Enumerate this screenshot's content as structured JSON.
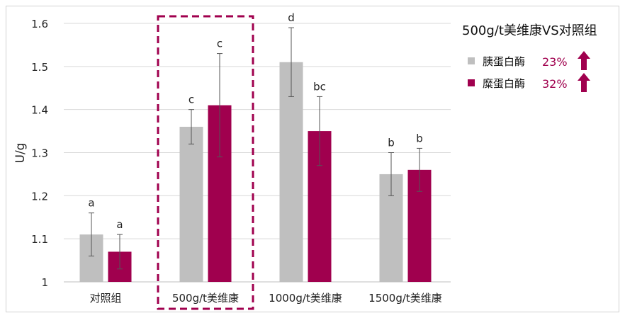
{
  "chart_data": {
    "type": "bar",
    "title": "500g/t美维康VS对照组",
    "ylabel": "U/g",
    "xlabel": "",
    "ylim": [
      1.0,
      1.6
    ],
    "yticks": [
      "1",
      "1.1",
      "1.2",
      "1.3",
      "1.4",
      "1.5",
      "1.6"
    ],
    "ytick_values": [
      1.0,
      1.1,
      1.2,
      1.3,
      1.4,
      1.5,
      1.6
    ],
    "grid": true,
    "legend_position": "right",
    "categories": [
      "对照组",
      "500g/t美维康",
      "1000g/t美维康",
      "1500g/t美维康"
    ],
    "highlighted_category": "500g/t美维康",
    "series": [
      {
        "name": "胰蛋白酶",
        "color": "#bfbfbf",
        "values": [
          1.11,
          1.36,
          1.51,
          1.25
        ],
        "error_low": [
          1.06,
          1.32,
          1.43,
          1.2
        ],
        "error_high": [
          1.16,
          1.4,
          1.59,
          1.3
        ],
        "letters": [
          "a",
          "c",
          "d",
          "b"
        ],
        "increase": "23%"
      },
      {
        "name": "糜蛋白酶",
        "color": "#a0004e",
        "values": [
          1.07,
          1.41,
          1.35,
          1.26
        ],
        "error_low": [
          1.03,
          1.29,
          1.27,
          1.21
        ],
        "error_high": [
          1.11,
          1.53,
          1.43,
          1.31
        ],
        "letters": [
          "a",
          "c",
          "bc",
          "b"
        ],
        "increase": "32%"
      }
    ],
    "increase_icon": "up-arrow-icon",
    "increase_color": "#a0004e",
    "highlight_color": "#a0004e"
  }
}
